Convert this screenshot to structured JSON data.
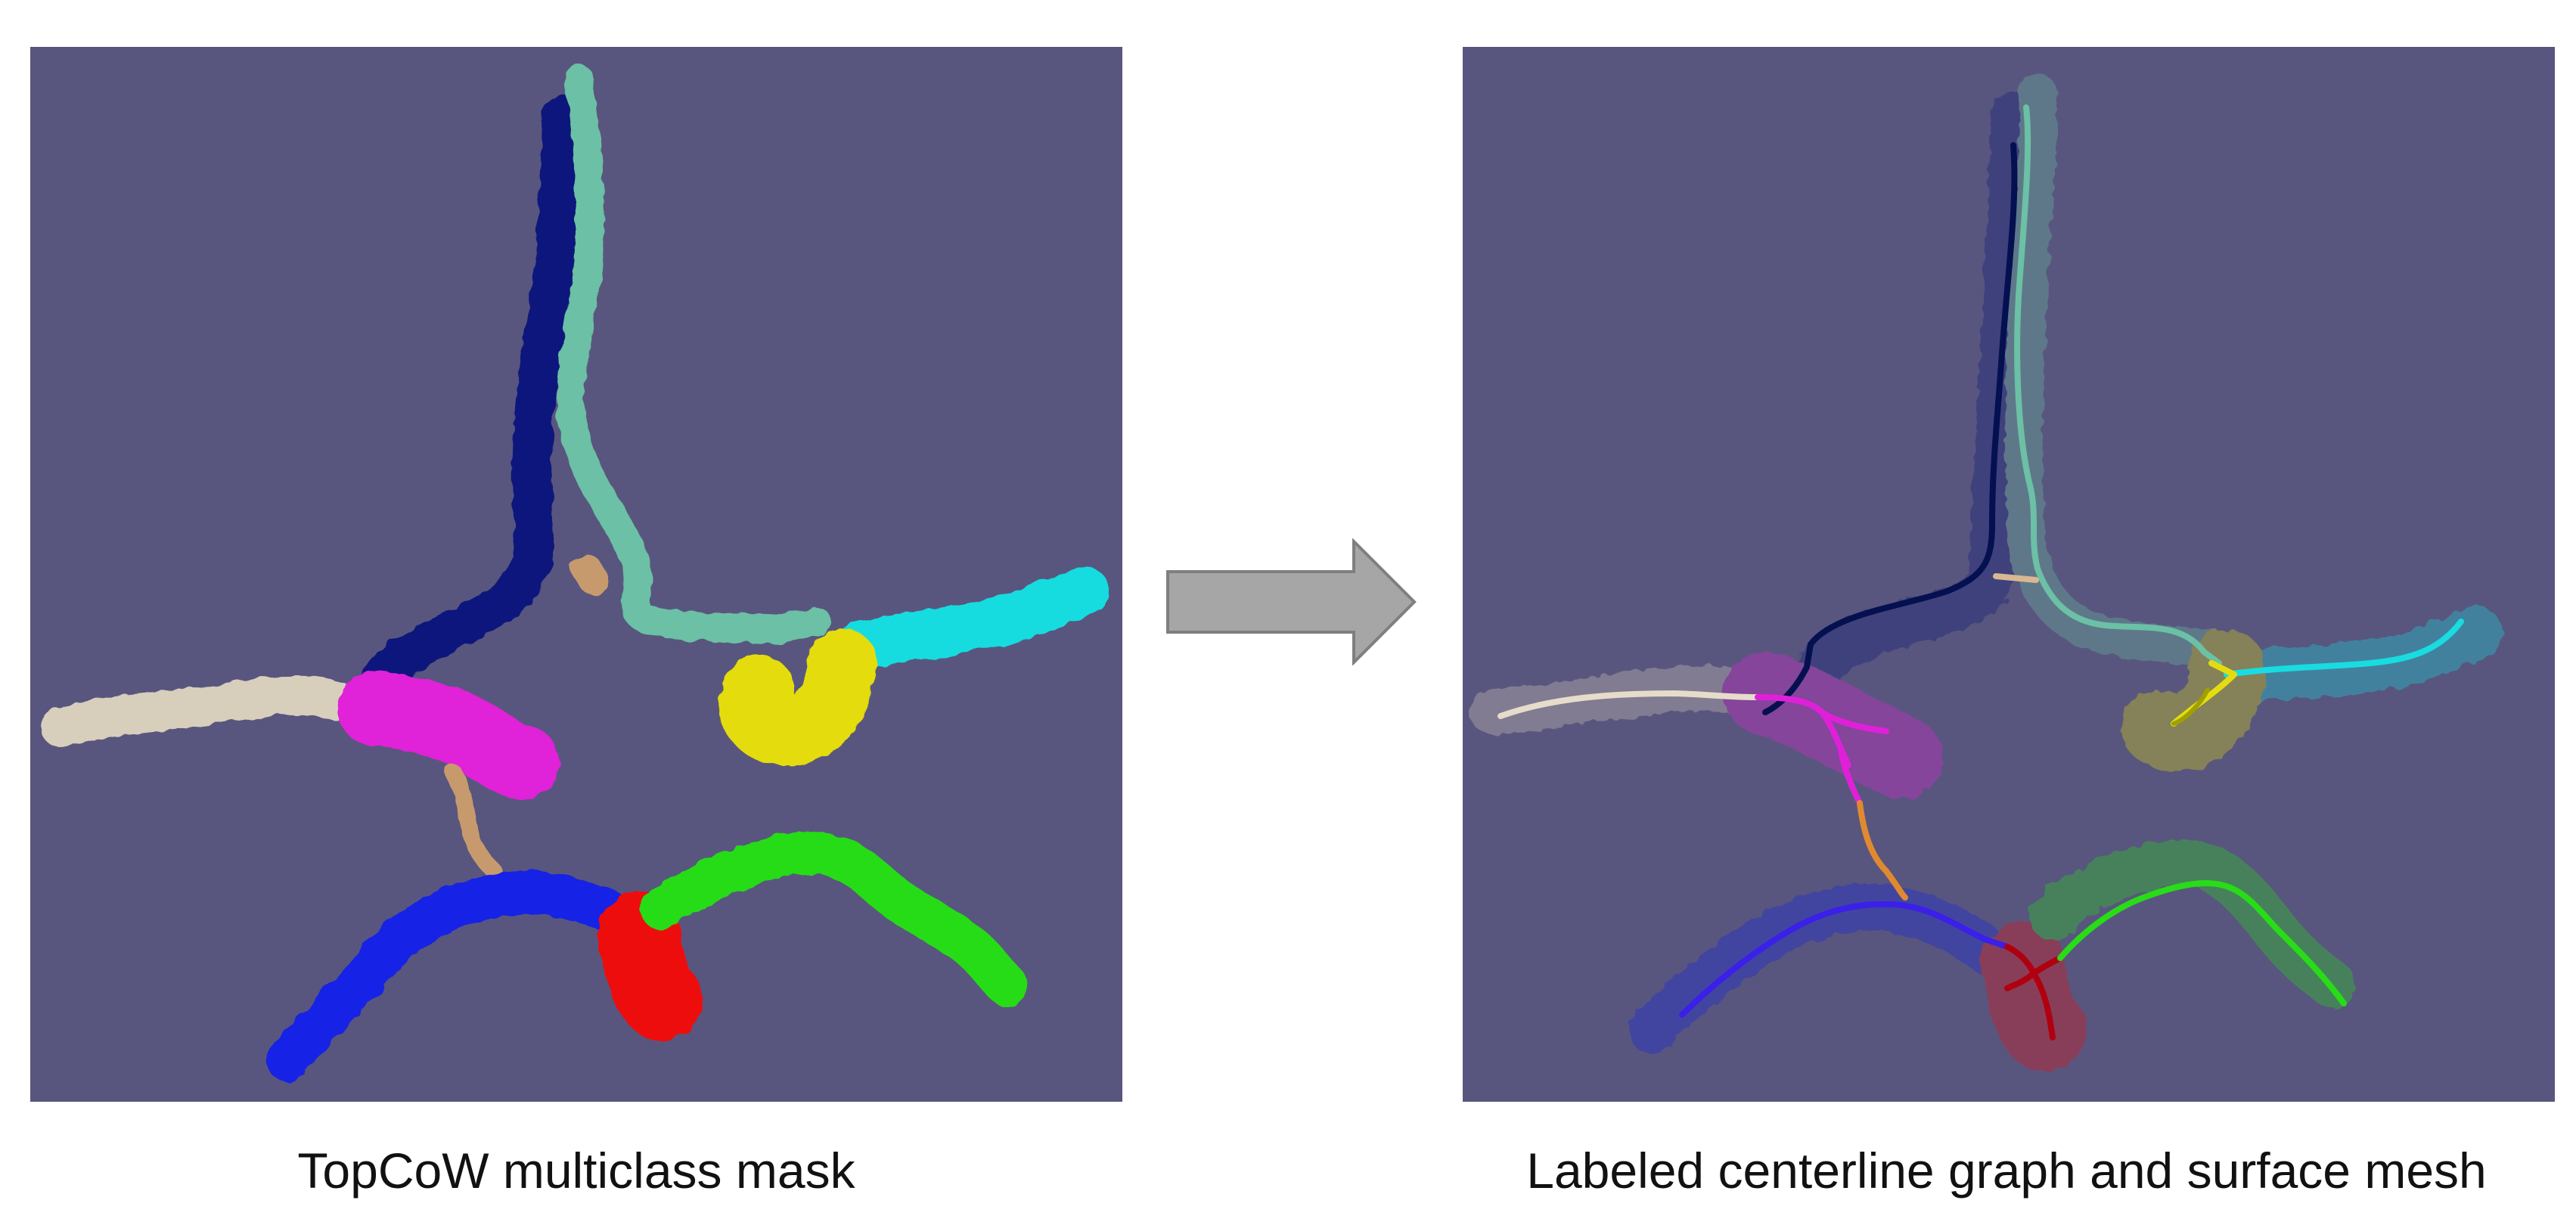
{
  "captions": {
    "left": "TopCoW multiclass mask",
    "right": "Labeled centerline graph and surface mesh"
  },
  "colors": {
    "background": "#58567e",
    "arrow_fill": "#a6a6a6",
    "arrow_stroke": "#7f7f7f",
    "vessel_navy": "#0a137c",
    "vessel_teal": "#6cc0a5",
    "vessel_beige": "#d8cebc",
    "vessel_magenta": "#e020d8",
    "vessel_tan": "#c79a6d",
    "vessel_yellow": "#e4dc10",
    "vessel_cyan": "#18dce0",
    "vessel_blue": "#1224e6",
    "vessel_red": "#ee1010",
    "vessel_green": "#28dc18",
    "line_navy": "#051050",
    "line_blue": "#3a20e8",
    "line_orange": "#e08a30",
    "line_darkred": "#b00010",
    "line_olive": "#a0a000"
  },
  "icons": {
    "arrow": "right-arrow-icon"
  }
}
